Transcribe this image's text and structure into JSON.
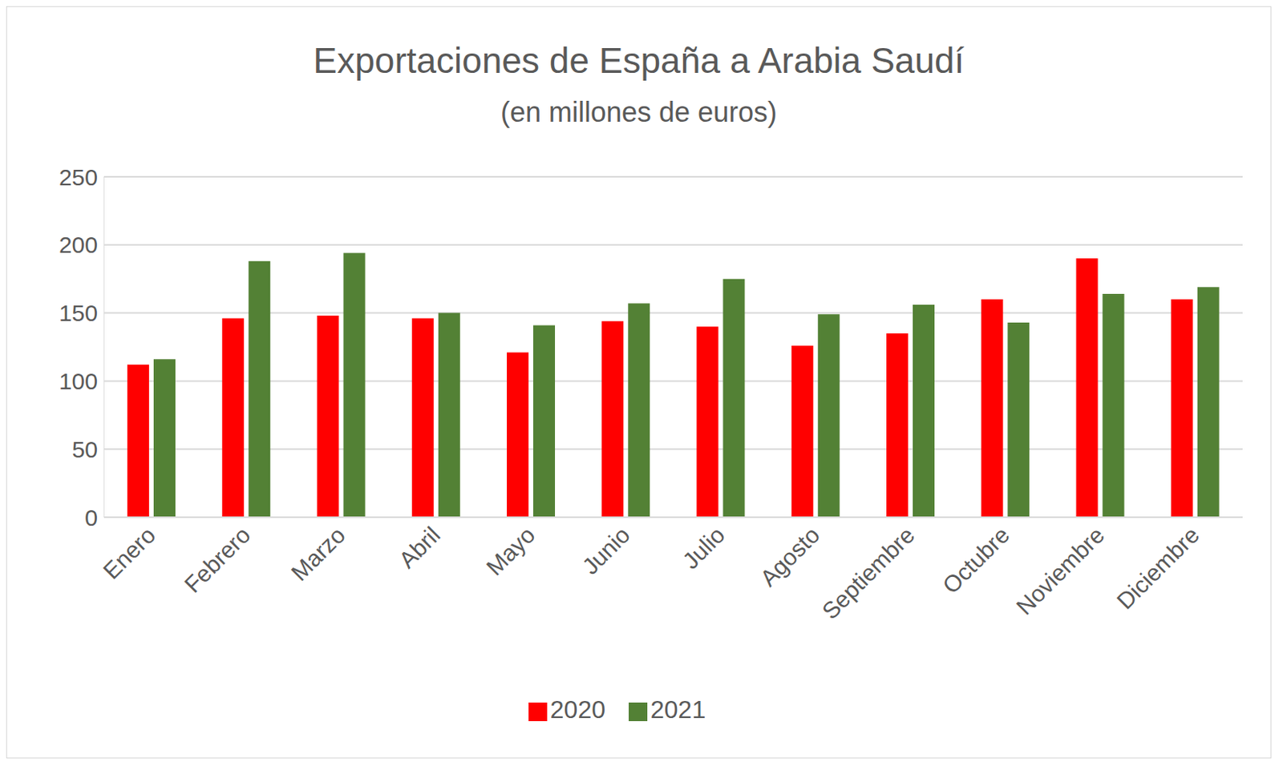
{
  "chart_data": {
    "type": "bar",
    "title": "Exportaciones de España a Arabia Saudí",
    "subtitle": "(en millones de euros)",
    "categories": [
      "Enero",
      "Febrero",
      "Marzo",
      "Abril",
      "Mayo",
      "Junio",
      "Julio",
      "Agosto",
      "Septiembre",
      "Octubre",
      "Noviembre",
      "Diciembre"
    ],
    "series": [
      {
        "name": "2020",
        "color": "#ff0000",
        "values": [
          112,
          146,
          148,
          146,
          121,
          144,
          140,
          126,
          135,
          160,
          190,
          160
        ]
      },
      {
        "name": "2021",
        "color": "#538135",
        "values": [
          116,
          188,
          194,
          150,
          141,
          157,
          175,
          149,
          156,
          143,
          164,
          169
        ]
      }
    ],
    "ylim": [
      0,
      250
    ],
    "yticks": [
      0,
      50,
      100,
      150,
      200,
      250
    ],
    "grid": true,
    "legend": "bottom"
  }
}
